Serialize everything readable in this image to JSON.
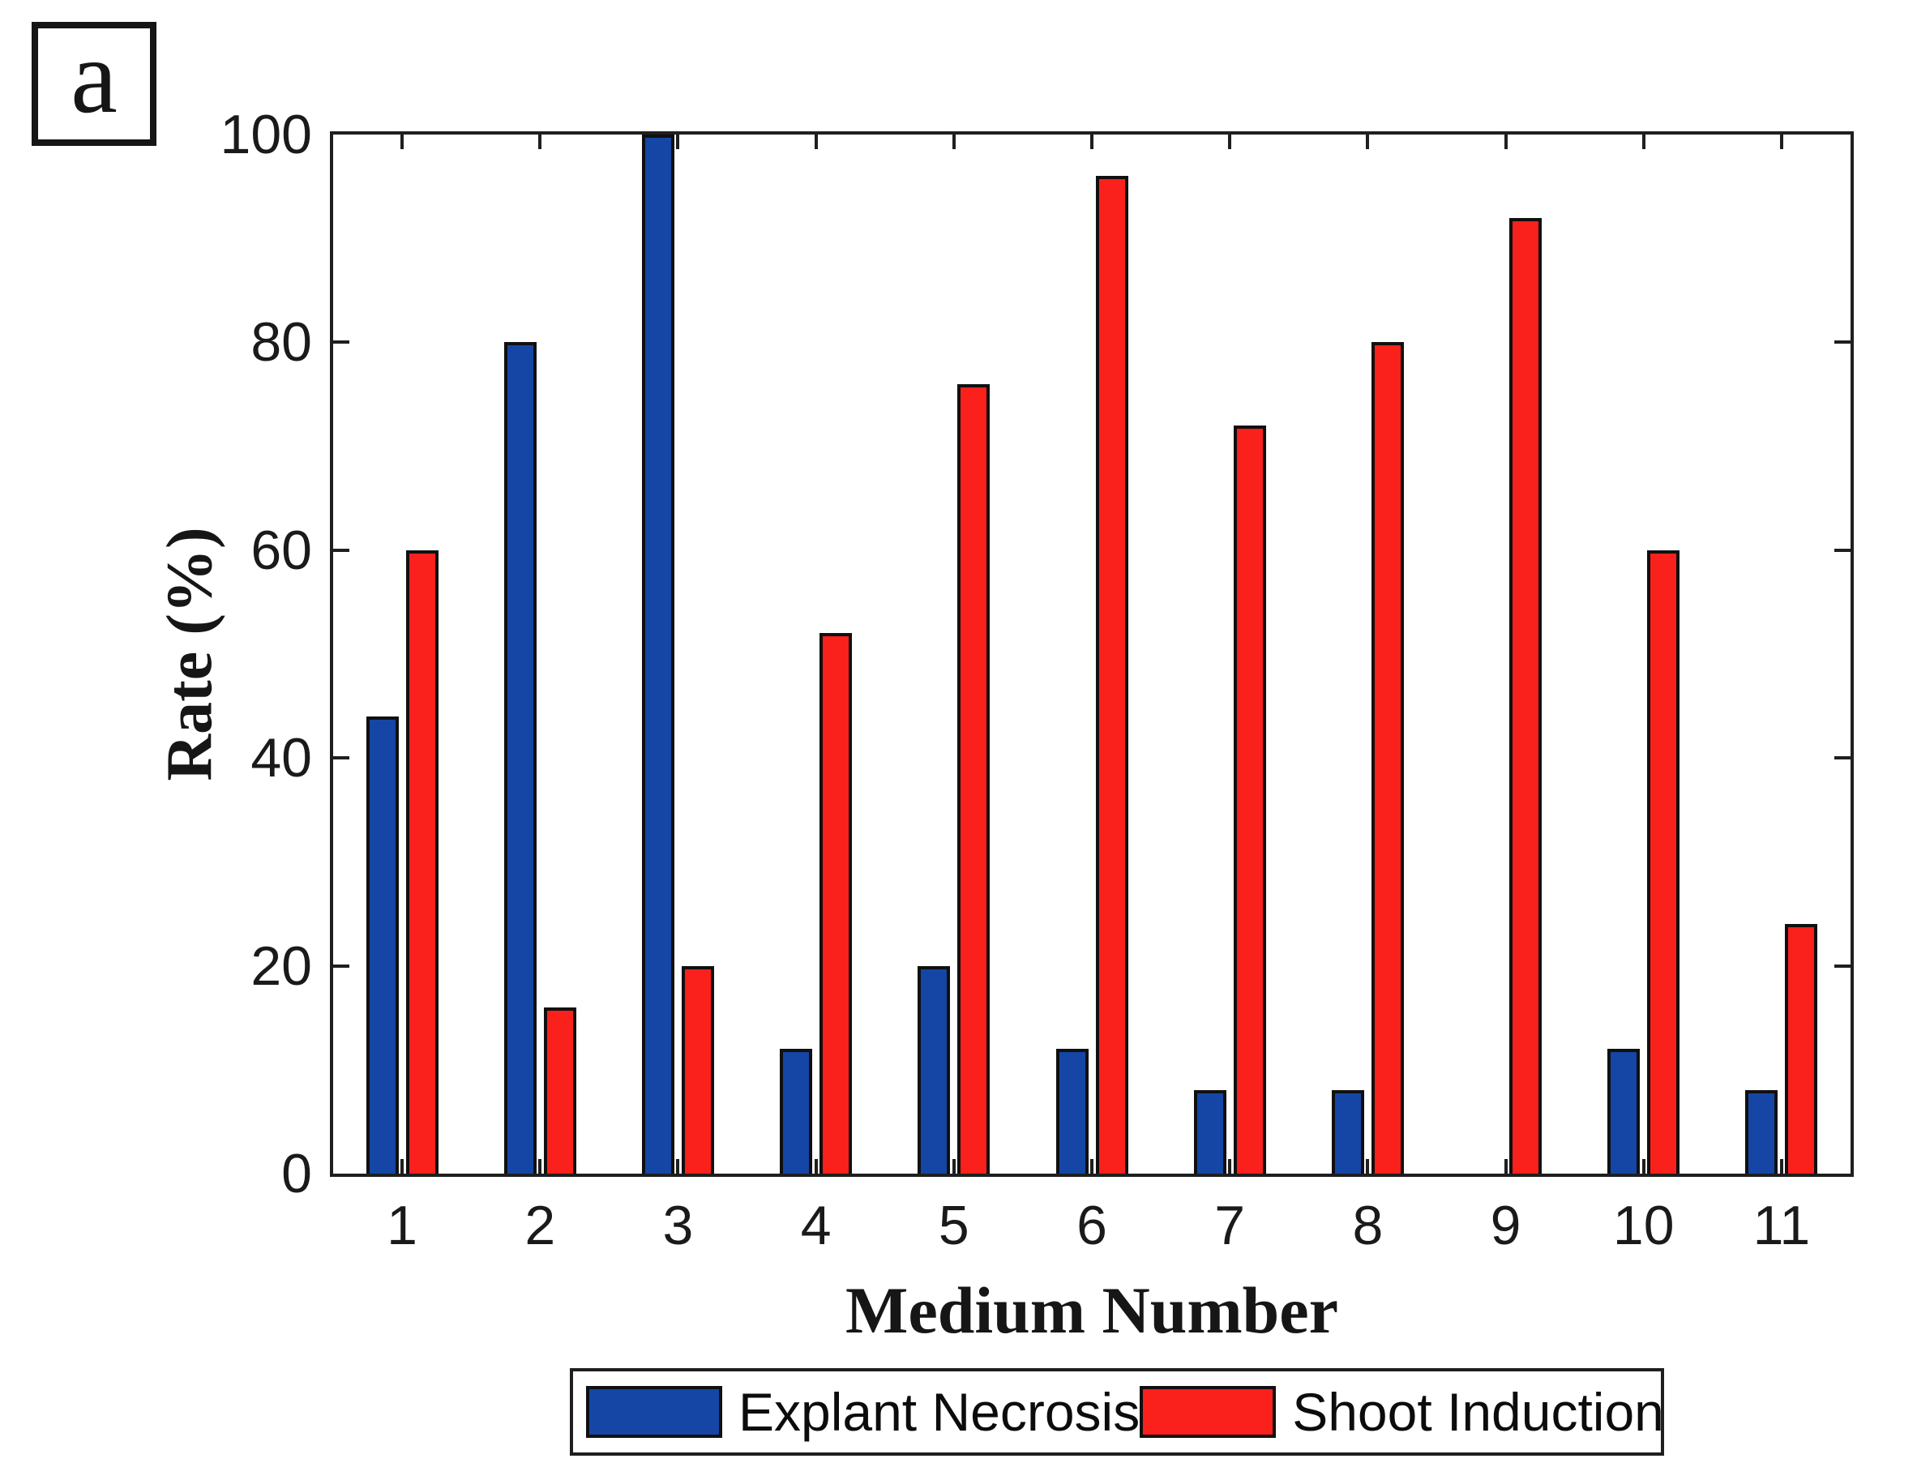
{
  "panel": {
    "label": "a"
  },
  "chart_data": {
    "type": "bar",
    "title": "",
    "xlabel": "Medium Number",
    "ylabel": "Rate (%)",
    "categories": [
      "1",
      "2",
      "3",
      "4",
      "5",
      "6",
      "7",
      "8",
      "9",
      "10",
      "11"
    ],
    "series": [
      {
        "name": "Explant Necrosis",
        "color": "#1546A5",
        "values": [
          44,
          80,
          100,
          12,
          20,
          12,
          8,
          8,
          0,
          12,
          8
        ]
      },
      {
        "name": "Shoot Induction",
        "color": "#FA201C",
        "values": [
          60,
          16,
          20,
          52,
          76,
          96,
          72,
          80,
          92,
          60,
          24
        ]
      }
    ],
    "ylim": [
      0,
      100
    ],
    "yticks": [
      0,
      20,
      40,
      60,
      80,
      100
    ],
    "grid": false,
    "legend_position": "below-chart",
    "axis_color": "#1f1f1f",
    "bar_edge_color": "#101010"
  }
}
